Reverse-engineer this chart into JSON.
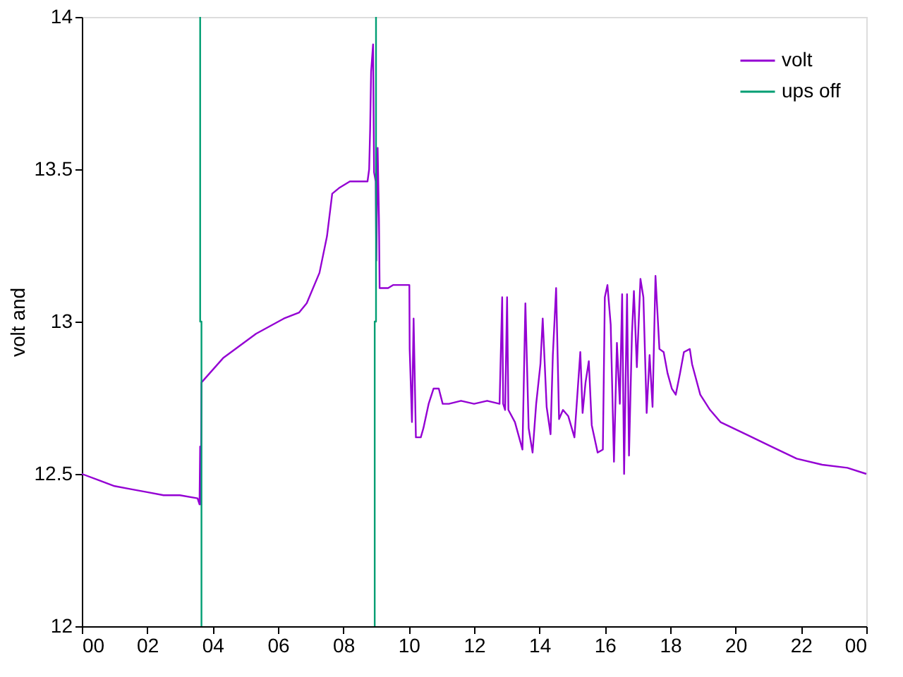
{
  "chart_data": {
    "type": "line",
    "ylabel": "volt and",
    "xlim": [
      0,
      24
    ],
    "ylim": [
      12,
      14
    ],
    "xticks": [
      {
        "value": 0,
        "label": "00"
      },
      {
        "value": 2,
        "label": "02"
      },
      {
        "value": 4,
        "label": "04"
      },
      {
        "value": 6,
        "label": "06"
      },
      {
        "value": 8,
        "label": "08"
      },
      {
        "value": 10,
        "label": "10"
      },
      12,
      14,
      16,
      18,
      20,
      22,
      {
        "value": 24,
        "label": "00"
      }
    ],
    "yticks": [
      12,
      12.5,
      13,
      13.5,
      14
    ],
    "grid": false,
    "legend": "top right",
    "line_style": "solid",
    "marker": "none",
    "series": [
      {
        "name": "volt",
        "color": "#9400d3",
        "x": [
          0,
          0.5,
          1.0,
          1.5,
          2.0,
          2.5,
          3.0,
          3.54,
          3.6,
          3.62,
          3.64,
          3.66,
          4.32,
          5.33,
          6.18,
          6.65,
          6.88,
          7.27,
          7.5,
          7.66,
          7.89,
          8.2,
          8.74,
          8.79,
          8.82,
          8.85,
          8.91,
          8.94,
          8.99,
          9.01,
          9.05,
          9.09,
          9.11,
          9.37,
          9.52,
          10.02,
          10.03,
          10.1,
          10.15,
          10.22,
          10.37,
          10.45,
          10.61,
          10.76,
          10.92,
          11.04,
          11.23,
          11.6,
          12.0,
          12.4,
          12.78,
          12.86,
          12.89,
          12.95,
          13.01,
          13.05,
          13.25,
          13.48,
          13.57,
          13.67,
          13.79,
          13.9,
          14.03,
          14.1,
          14.22,
          14.34,
          14.41,
          14.51,
          14.6,
          14.72,
          14.88,
          15.07,
          15.25,
          15.32,
          15.41,
          15.51,
          15.6,
          15.72,
          15.78,
          15.94,
          16.0,
          16.08,
          16.18,
          16.28,
          16.37,
          16.46,
          16.53,
          16.59,
          16.68,
          16.74,
          16.83,
          16.89,
          16.98,
          17.09,
          17.18,
          17.28,
          17.37,
          17.46,
          17.55,
          17.67,
          17.8,
          17.92,
          18.05,
          18.17,
          18.3,
          18.42,
          18.6,
          18.67,
          18.92,
          19.22,
          19.54,
          20.32,
          21.09,
          21.87,
          22.65,
          23.42,
          24
        ],
        "values": [
          12.5,
          12.48,
          12.46,
          12.45,
          12.44,
          12.43,
          12.43,
          12.42,
          12.4,
          12.59,
          12.4,
          12.8,
          12.88,
          12.96,
          13.01,
          13.03,
          13.06,
          13.16,
          13.28,
          13.42,
          13.44,
          13.46,
          13.46,
          13.5,
          13.63,
          13.82,
          13.91,
          13.49,
          13.46,
          13.2,
          13.57,
          13.34,
          13.11,
          13.11,
          13.12,
          13.12,
          12.91,
          12.67,
          13.01,
          12.62,
          12.62,
          12.65,
          12.73,
          12.78,
          12.78,
          12.73,
          12.73,
          12.74,
          12.73,
          12.74,
          12.73,
          13.08,
          12.73,
          12.71,
          13.08,
          12.71,
          12.67,
          12.58,
          13.06,
          12.65,
          12.57,
          12.73,
          12.86,
          13.01,
          12.72,
          12.63,
          12.89,
          13.11,
          12.68,
          12.71,
          12.69,
          12.62,
          12.9,
          12.7,
          12.8,
          12.87,
          12.66,
          12.6,
          12.57,
          12.58,
          13.08,
          13.12,
          12.99,
          12.54,
          12.93,
          12.73,
          13.09,
          12.5,
          13.09,
          12.56,
          12.96,
          13.1,
          12.85,
          13.14,
          13.08,
          12.7,
          12.89,
          12.72,
          13.15,
          12.91,
          12.9,
          12.83,
          12.78,
          12.76,
          12.83,
          12.9,
          12.91,
          12.86,
          12.76,
          12.71,
          12.67,
          12.63,
          12.59,
          12.55,
          12.53,
          12.52,
          12.5
        ]
      },
      {
        "name": "ups off",
        "color": "#009e73",
        "x": [
          3.62,
          3.62,
          3.66,
          3.66,
          6.0,
          8.96,
          8.96,
          9.0,
          9.0
        ],
        "values": [
          14,
          13,
          13,
          12,
          null,
          12,
          13,
          13,
          14
        ]
      }
    ]
  }
}
